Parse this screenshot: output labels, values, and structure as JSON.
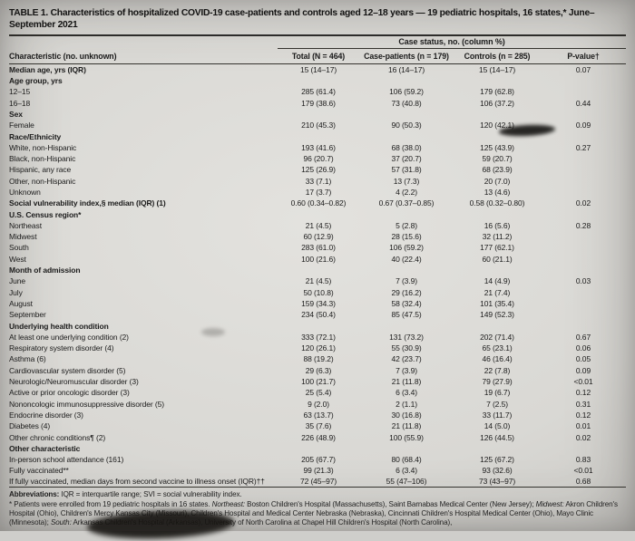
{
  "title": "TABLE 1. Characteristics of hospitalized COVID-19 case-patients and controls aged 12–18 years — 19 pediatric hospitals, 16 states,* June–September 2021",
  "table": {
    "spanner": "Case status, no. (column %)",
    "columns": {
      "characteristic": "Characteristic (no. unknown)",
      "total": "Total (N = 464)",
      "cases": "Case-patients (n = 179)",
      "controls": "Controls (n = 285)",
      "pvalue": "P-value†"
    },
    "rows": [
      {
        "label": "Median age, yrs (IQR)",
        "bold": true,
        "total": "15 (14–17)",
        "cases": "16 (14–17)",
        "controls": "15 (14–17)",
        "p": "0.07"
      },
      {
        "label": "Age group, yrs",
        "bold": true
      },
      {
        "label": "12–15",
        "total": "285 (61.4)",
        "cases": "106 (59.2)",
        "controls": "179 (62.8)",
        "p": ""
      },
      {
        "label": "16–18",
        "total": "179 (38.6)",
        "cases": "73 (40.8)",
        "controls": "106 (37.2)",
        "p": "0.44"
      },
      {
        "label": "Sex",
        "bold": true
      },
      {
        "label": "Female",
        "total": "210 (45.3)",
        "cases": "90 (50.3)",
        "controls": "120 (42.1)",
        "p": "0.09"
      },
      {
        "label": "Race/Ethnicity",
        "bold": true
      },
      {
        "label": "White, non-Hispanic",
        "total": "193 (41.6)",
        "cases": "68 (38.0)",
        "controls": "125 (43.9)",
        "p": "0.27"
      },
      {
        "label": "Black, non-Hispanic",
        "total": "96 (20.7)",
        "cases": "37 (20.7)",
        "controls": "59 (20.7)",
        "p": ""
      },
      {
        "label": "Hispanic, any race",
        "total": "125 (26.9)",
        "cases": "57 (31.8)",
        "controls": "68 (23.9)",
        "p": ""
      },
      {
        "label": "Other, non-Hispanic",
        "total": "33 (7.1)",
        "cases": "13 (7.3)",
        "controls": "20 (7.0)",
        "p": ""
      },
      {
        "label": "Unknown",
        "total": "17 (3.7)",
        "cases": "4 (2.2)",
        "controls": "13 (4.6)",
        "p": ""
      },
      {
        "label": "Social vulnerability index,§ median (IQR) (1)",
        "bold": true,
        "total": "0.60 (0.34–0.82)",
        "cases": "0.67 (0.37–0.85)",
        "controls": "0.58 (0.32–0.80)",
        "p": "0.02"
      },
      {
        "label": "U.S. Census region*",
        "bold": true
      },
      {
        "label": "Northeast",
        "total": "21 (4.5)",
        "cases": "5 (2.8)",
        "controls": "16 (5.6)",
        "p": "0.28"
      },
      {
        "label": "Midwest",
        "total": "60 (12.9)",
        "cases": "28 (15.6)",
        "controls": "32 (11.2)",
        "p": ""
      },
      {
        "label": "South",
        "total": "283 (61.0)",
        "cases": "106 (59.2)",
        "controls": "177 (62.1)",
        "p": ""
      },
      {
        "label": "West",
        "total": "100 (21.6)",
        "cases": "40 (22.4)",
        "controls": "60 (21.1)",
        "p": ""
      },
      {
        "label": "Month of admission",
        "bold": true
      },
      {
        "label": "June",
        "total": "21 (4.5)",
        "cases": "7 (3.9)",
        "controls": "14 (4.9)",
        "p": "0.03"
      },
      {
        "label": "July",
        "total": "50 (10.8)",
        "cases": "29 (16.2)",
        "controls": "21 (7.4)",
        "p": ""
      },
      {
        "label": "August",
        "total": "159 (34.3)",
        "cases": "58 (32.4)",
        "controls": "101 (35.4)",
        "p": ""
      },
      {
        "label": "September",
        "total": "234 (50.4)",
        "cases": "85 (47.5)",
        "controls": "149 (52.3)",
        "p": ""
      },
      {
        "label": "Underlying health condition",
        "bold": true
      },
      {
        "label": "At least one underlying condition (2)",
        "total": "333 (72.1)",
        "cases": "131 (73.2)",
        "controls": "202 (71.4)",
        "p": "0.67"
      },
      {
        "label": "Respiratory system disorder (4)",
        "total": "120 (26.1)",
        "cases": "55 (30.9)",
        "controls": "65 (23.1)",
        "p": "0.06"
      },
      {
        "label": "Asthma (6)",
        "total": "88 (19.2)",
        "cases": "42 (23.7)",
        "controls": "46 (16.4)",
        "p": "0.05"
      },
      {
        "label": "Cardiovascular system disorder (5)",
        "total": "29 (6.3)",
        "cases": "7 (3.9)",
        "controls": "22 (7.8)",
        "p": "0.09"
      },
      {
        "label": "Neurologic/Neuromuscular disorder (3)",
        "total": "100 (21.7)",
        "cases": "21 (11.8)",
        "controls": "79 (27.9)",
        "p": "<0.01"
      },
      {
        "label": "Active or prior oncologic disorder (3)",
        "total": "25 (5.4)",
        "cases": "6 (3.4)",
        "controls": "19 (6.7)",
        "p": "0.12"
      },
      {
        "label": "Nononcologic immunosuppressive disorder (5)",
        "total": "9 (2.0)",
        "cases": "2 (1.1)",
        "controls": "7 (2.5)",
        "p": "0.31"
      },
      {
        "label": "Endocrine disorder (3)",
        "total": "63 (13.7)",
        "cases": "30 (16.8)",
        "controls": "33 (11.7)",
        "p": "0.12"
      },
      {
        "label": "Diabetes (4)",
        "total": "35 (7.6)",
        "cases": "21 (11.8)",
        "controls": "14 (5.0)",
        "p": "0.01"
      },
      {
        "label": "Other chronic conditions¶ (2)",
        "total": "226 (48.9)",
        "cases": "100 (55.9)",
        "controls": "126 (44.5)",
        "p": "0.02"
      },
      {
        "label": "Other characteristic",
        "bold": true
      },
      {
        "label": "In-person school attendance (161)",
        "total": "205 (67.7)",
        "cases": "80 (68.4)",
        "controls": "125 (67.2)",
        "p": "0.83"
      },
      {
        "label": "Fully vaccinated**",
        "total": "99 (21.3)",
        "cases": "6 (3.4)",
        "controls": "93 (32.6)",
        "p": "<0.01"
      },
      {
        "label": "If fully vaccinated, median days from second vaccine to illness onset (IQR)††",
        "total": "72 (45–97)",
        "cases": "55 (47–106)",
        "controls": "73 (43–97)",
        "p": "0.68"
      }
    ]
  },
  "footnotes": {
    "abbr_label": "Abbreviations:",
    "abbr_text": " IQR = interquartile range; SVI = social vulnerability index.",
    "star": [
      {
        "t": "* Patients were enrolled from 19 pediatric hospitals in 16 states. "
      },
      {
        "t": "Northeast:",
        "i": true
      },
      {
        "t": " Boston Children's Hospital (Massachusetts), Saint Barnabas Medical Center (New Jersey); "
      },
      {
        "t": "Midwest:",
        "i": true
      },
      {
        "t": " Akron Children's Hospital (Ohio), Children's Mercy Kansas City (Missouri), Children's Hospital and Medical Center Nebraska (Nebraska), Cincinnati Children's Hospital Medical Center (Ohio), Mayo Clinic (Minnesota); "
      },
      {
        "t": "South:",
        "i": true
      },
      {
        "t": " Arkansas Children's Hospital (Arkansas), University of North Carolina at Chapel Hill Children's Hospital (North Carolina),"
      }
    ]
  }
}
